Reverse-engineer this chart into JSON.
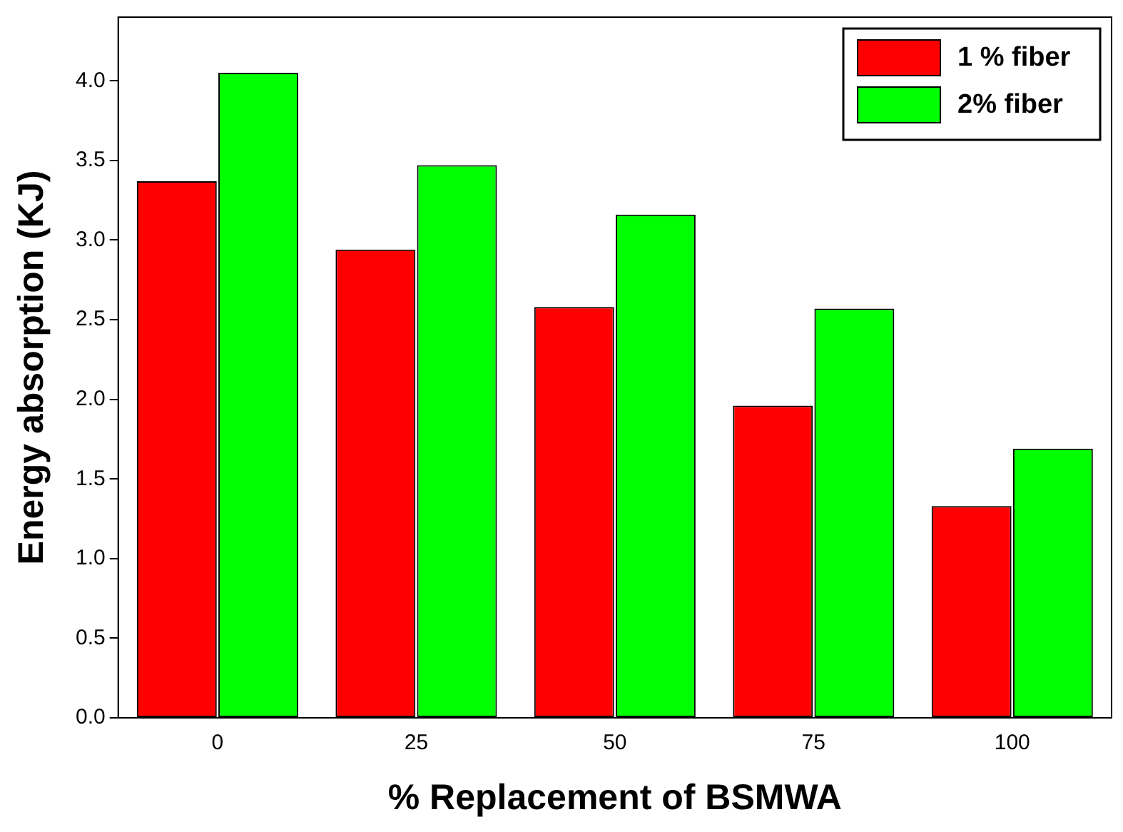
{
  "chart_data": {
    "type": "bar",
    "xlabel": "% Replacement of BSMWA",
    "ylabel": "Energy absorption (KJ)",
    "categories": [
      "0",
      "25",
      "50",
      "75",
      "100"
    ],
    "series": [
      {
        "name": "1 % fiber",
        "color": "#ff0000",
        "values": [
          3.37,
          2.94,
          2.58,
          1.96,
          1.33
        ]
      },
      {
        "name": "2% fiber",
        "color": "#00ff00",
        "values": [
          4.05,
          3.47,
          3.16,
          2.57,
          1.69
        ]
      }
    ],
    "ylim": [
      0,
      4.4
    ],
    "yticks": [
      {
        "value": 0,
        "label": "0.0"
      },
      {
        "value": 0.5,
        "label": "0.5"
      },
      {
        "value": 1,
        "label": "1.0"
      },
      {
        "value": 1.5,
        "label": "1.5"
      },
      {
        "value": 2,
        "label": "2.0"
      },
      {
        "value": 2.5,
        "label": "2.5"
      },
      {
        "value": 3,
        "label": "3.0"
      },
      {
        "value": 3.5,
        "label": "3.5"
      },
      {
        "value": 4,
        "label": "4.0"
      }
    ],
    "grid": false,
    "legend": "top right"
  }
}
